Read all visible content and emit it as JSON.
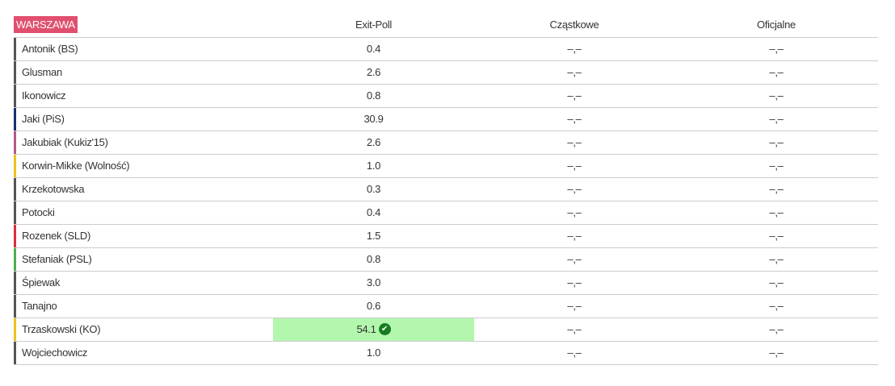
{
  "header": {
    "region": "WARSZAWA",
    "columns": [
      "Exit-Poll",
      "Cząstkowe",
      "Oficjalne"
    ]
  },
  "rows": [
    {
      "name": "Antonik (BS)",
      "exit": "0.4",
      "partial": "–,–",
      "official": "–,–",
      "color": "#555555"
    },
    {
      "name": "Glusman",
      "exit": "2.6",
      "partial": "–,–",
      "official": "–,–",
      "color": "#555555"
    },
    {
      "name": "Ikonowicz",
      "exit": "0.8",
      "partial": "–,–",
      "official": "–,–",
      "color": "#555555"
    },
    {
      "name": "Jaki (PiS)",
      "exit": "30.9",
      "partial": "–,–",
      "official": "–,–",
      "color": "#1a2f6e"
    },
    {
      "name": "Jakubiak (Kukiz'15)",
      "exit": "2.6",
      "partial": "–,–",
      "official": "–,–",
      "color": "#b05a8a"
    },
    {
      "name": "Korwin-Mikke (Wolność)",
      "exit": "1.0",
      "partial": "–,–",
      "official": "–,–",
      "color": "#f0c020"
    },
    {
      "name": "Krzekotowska",
      "exit": "0.3",
      "partial": "–,–",
      "official": "–,–",
      "color": "#555555"
    },
    {
      "name": "Potocki",
      "exit": "0.4",
      "partial": "–,–",
      "official": "–,–",
      "color": "#555555"
    },
    {
      "name": "Rozenek (SLD)",
      "exit": "1.5",
      "partial": "–,–",
      "official": "–,–",
      "color": "#d9303a"
    },
    {
      "name": "Stefaniak (PSL)",
      "exit": "0.8",
      "partial": "–,–",
      "official": "–,–",
      "color": "#4caf50"
    },
    {
      "name": "Śpiewak",
      "exit": "3.0",
      "partial": "–,–",
      "official": "–,–",
      "color": "#555555"
    },
    {
      "name": "Tanajno",
      "exit": "0.6",
      "partial": "–,–",
      "official": "–,–",
      "color": "#555555"
    },
    {
      "name": "Trzaskowski (KO)",
      "exit": "54.1",
      "partial": "–,–",
      "official": "–,–",
      "color": "#f0c020",
      "winner": true,
      "winner_icon": "check-circle-icon"
    },
    {
      "name": "Wojciechowicz",
      "exit": "1.0",
      "partial": "–,–",
      "official": "–,–",
      "color": "#555555"
    }
  ]
}
